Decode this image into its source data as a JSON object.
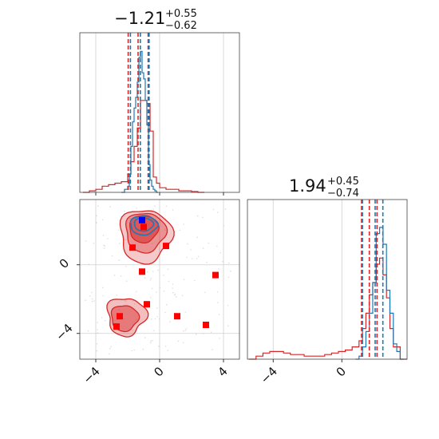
{
  "colors": {
    "blue_series": "#1f77b4",
    "red_series": "#d62728",
    "marker_red": "#ff0000",
    "marker_blue": "#0000ff",
    "grid": "#cfcfcf"
  },
  "chart_data": {
    "type": "corner",
    "panels": {
      "hist_x": {
        "title": {
          "value": "−1.21",
          "plus": "+0.55",
          "minus": "−0.62"
        },
        "xlim": [
          -5,
          5
        ],
        "xticks": [
          -4,
          0,
          4
        ],
        "blue_hist": {
          "x": [
            -2.4,
            -2.2,
            -2.0,
            -1.9,
            -1.8,
            -1.7,
            -1.6,
            -1.5,
            -1.4,
            -1.3,
            -1.2,
            -1.1,
            -1.0,
            -0.9,
            -0.8,
            -0.7,
            -0.6,
            -0.5,
            -0.4,
            -0.3,
            -0.2
          ],
          "y": [
            0.0,
            0.02,
            0.04,
            0.12,
            0.3,
            0.46,
            0.55,
            0.62,
            0.72,
            0.88,
            0.92,
            0.78,
            0.74,
            0.6,
            0.44,
            0.18,
            0.08,
            0.04,
            0.02,
            0.01,
            0.0
          ]
        },
        "red_hist": {
          "x": [
            -4.8,
            -4.4,
            -4.0,
            -3.6,
            -3.2,
            -2.8,
            -2.4,
            -2.0,
            -1.8,
            -1.6,
            -1.4,
            -1.2,
            -1.0,
            -0.8,
            -0.6,
            -0.4,
            -0.2,
            0.0,
            0.4,
            0.8,
            1.2,
            1.6,
            2.0,
            2.4
          ],
          "y": [
            0.0,
            0.01,
            0.02,
            0.04,
            0.05,
            0.06,
            0.07,
            0.12,
            0.2,
            0.3,
            0.42,
            0.6,
            0.6,
            0.58,
            0.4,
            0.1,
            0.06,
            0.03,
            0.02,
            0.02,
            0.01,
            0.01,
            0.005,
            0.0
          ]
        },
        "blue_quantiles": [
          -1.83,
          -1.21,
          -0.66
        ],
        "red_quantiles": [
          -1.97,
          -1.35,
          -0.72
        ]
      },
      "hist_y": {
        "title": {
          "value": "1.94",
          "plus": "+0.45",
          "minus": "−0.74"
        },
        "xlim": [
          -5.5,
          3.8
        ],
        "xticks": [
          -4,
          0
        ],
        "blue_hist": {
          "x": [
            0.8,
            1.0,
            1.2,
            1.4,
            1.6,
            1.8,
            2.0,
            2.2,
            2.4,
            2.6,
            2.8,
            3.0,
            3.2,
            3.4
          ],
          "y": [
            0.0,
            0.02,
            0.08,
            0.18,
            0.3,
            0.5,
            0.82,
            0.86,
            0.75,
            0.45,
            0.3,
            0.1,
            0.05,
            0.0
          ]
        },
        "red_hist": {
          "x": [
            -5.4,
            -5.0,
            -4.6,
            -4.2,
            -3.8,
            -3.4,
            -3.0,
            -2.6,
            -2.2,
            -1.8,
            -1.4,
            -1.0,
            -0.6,
            -0.2,
            0.2,
            0.6,
            1.0,
            1.2,
            1.4,
            1.6,
            1.8,
            2.0,
            2.2,
            2.4,
            2.6,
            2.8,
            3.0,
            3.4
          ],
          "y": [
            0.0,
            0.02,
            0.04,
            0.05,
            0.05,
            0.04,
            0.03,
            0.03,
            0.02,
            0.02,
            0.02,
            0.03,
            0.04,
            0.05,
            0.06,
            0.08,
            0.12,
            0.2,
            0.3,
            0.42,
            0.5,
            0.62,
            0.66,
            0.55,
            0.4,
            0.2,
            0.08,
            0.0
          ]
        },
        "blue_quantiles": [
          1.2,
          1.94,
          2.39
        ],
        "red_quantiles": [
          1.15,
          1.6,
          2.05
        ]
      },
      "scatter": {
        "xlim": [
          -5,
          5
        ],
        "ylim": [
          -5.5,
          3.8
        ],
        "xticks": [
          -4,
          0,
          4
        ],
        "yticks": [
          0,
          -4
        ],
        "red_points": [
          [
            -1.0,
            2.2
          ],
          [
            -1.7,
            1.0
          ],
          [
            0.4,
            1.1
          ],
          [
            -1.1,
            -0.4
          ],
          [
            3.5,
            -0.6
          ],
          [
            -0.8,
            -2.3
          ],
          [
            1.1,
            -3.0
          ],
          [
            2.9,
            -3.5
          ],
          [
            -2.5,
            -3.0
          ],
          [
            -2.7,
            -3.6
          ]
        ],
        "blue_points": [
          [
            -1.1,
            2.6
          ]
        ]
      }
    }
  }
}
